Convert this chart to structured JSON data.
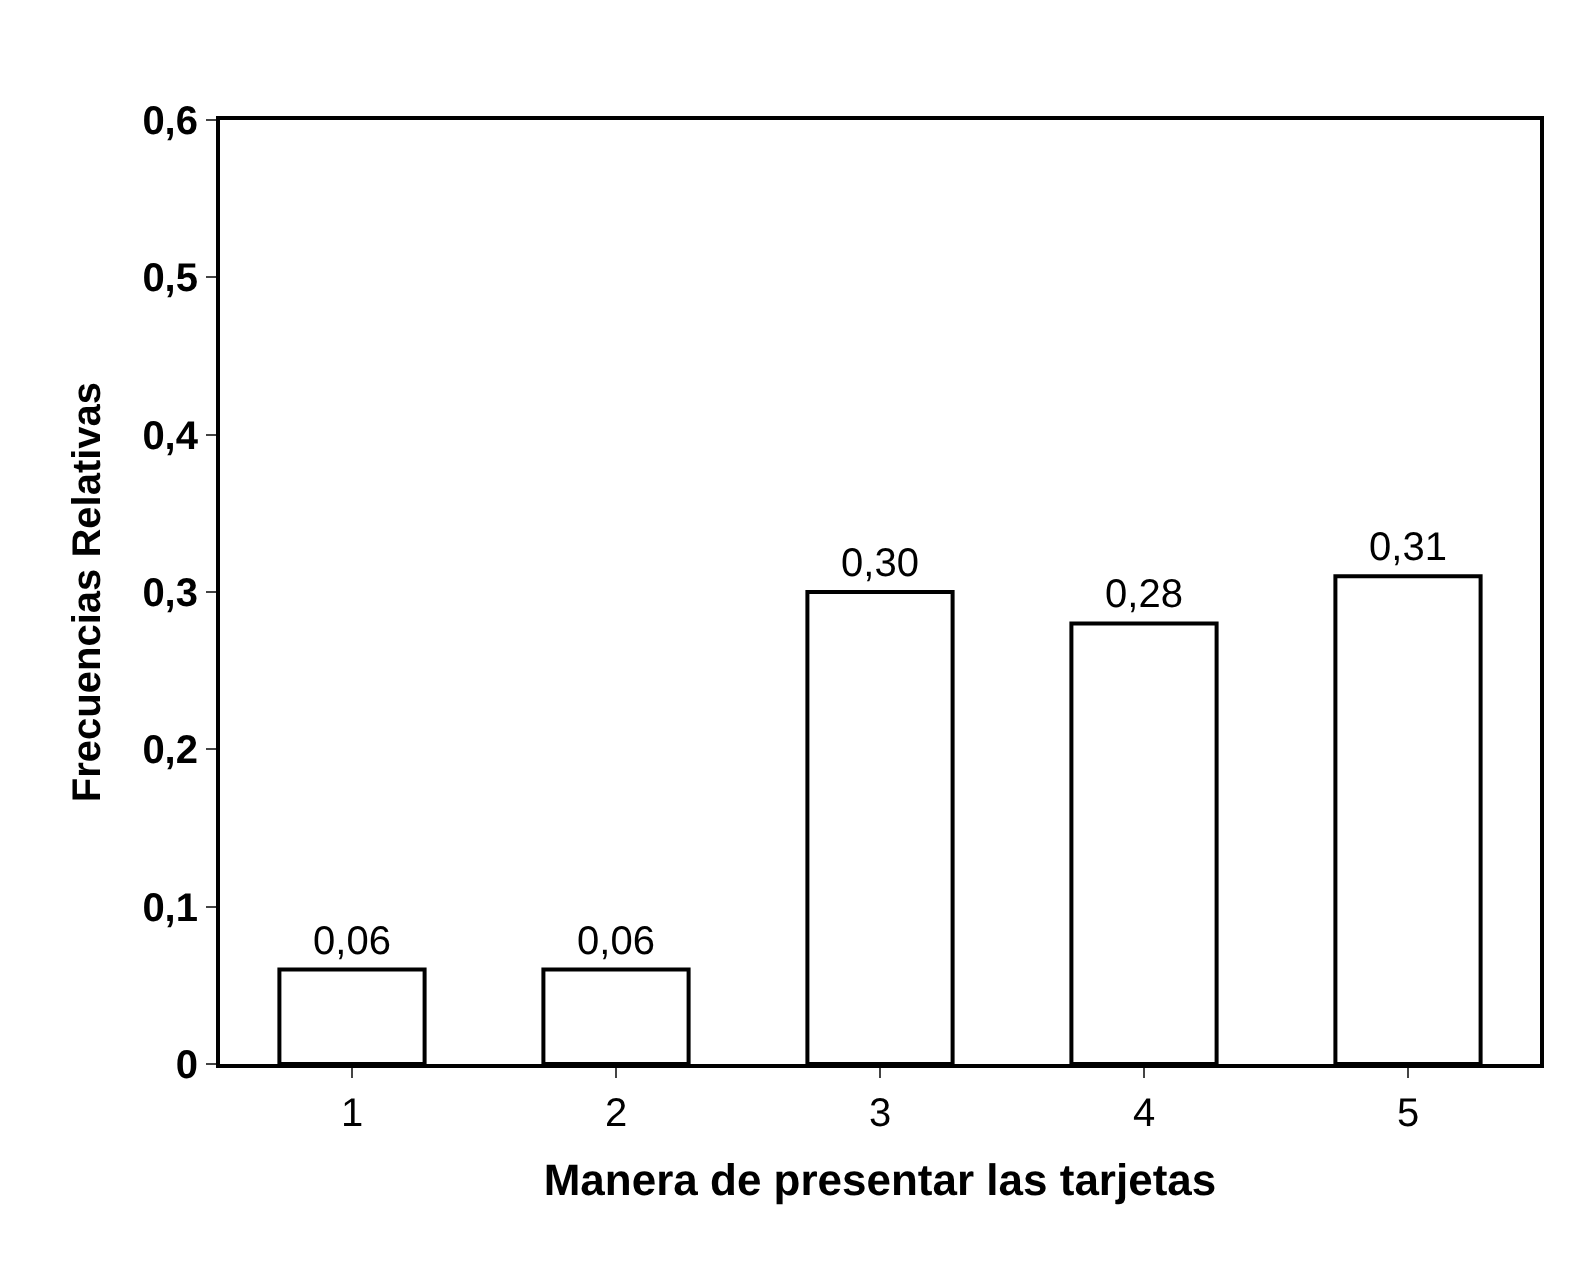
{
  "chart_data": {
    "type": "bar",
    "xlabel": "Manera de presentar las tarjetas",
    "ylabel": "Frecuencias Relativas",
    "categories": [
      "1",
      "2",
      "3",
      "4",
      "5"
    ],
    "values": [
      0.06,
      0.06,
      0.3,
      0.28,
      0.31
    ],
    "value_labels": [
      "0,06",
      "0,06",
      "0,30",
      "0,28",
      "0,31"
    ],
    "color": "#ffffff",
    "ylim": [
      0,
      0.6
    ],
    "yticks": [
      0,
      {
        "value": 0.1,
        "label": "0,1"
      },
      {
        "value": 0.2,
        "label": "0,2"
      },
      {
        "value": 0.3,
        "label": "0,3"
      },
      {
        "value": 0.4,
        "label": "0,4"
      },
      {
        "value": 0.5,
        "label": "0,5"
      },
      {
        "value": 0.6,
        "label": "0,6"
      }
    ]
  }
}
